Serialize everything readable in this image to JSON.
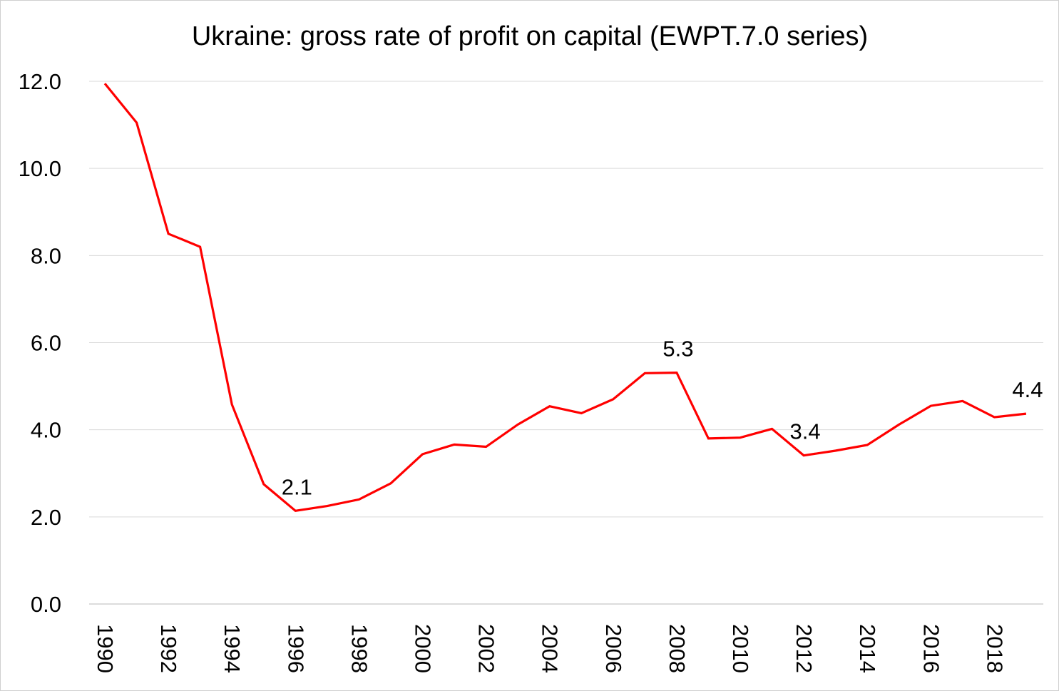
{
  "chart_data": {
    "type": "line",
    "title": "Ukraine: gross rate of profit on capital  (EWPT.7.0 series)",
    "xlabel": "",
    "ylabel": "",
    "ylim": [
      0,
      12
    ],
    "yticks": [
      "0.0",
      "2.0",
      "4.0",
      "6.0",
      "8.0",
      "10.0",
      "12.0"
    ],
    "x": [
      1990,
      1991,
      1992,
      1993,
      1994,
      1995,
      1996,
      1997,
      1998,
      1999,
      2000,
      2001,
      2002,
      2003,
      2004,
      2005,
      2006,
      2007,
      2008,
      2009,
      2010,
      2011,
      2012,
      2013,
      2014,
      2015,
      2016,
      2017,
      2018,
      2019
    ],
    "xticks": [
      "1990",
      "1992",
      "1994",
      "1996",
      "1998",
      "2000",
      "2002",
      "2004",
      "2006",
      "2008",
      "2010",
      "2012",
      "2014",
      "2016",
      "2018"
    ],
    "grid": true,
    "legend": "none",
    "series": [
      {
        "color": "#ff0000",
        "values": [
          11.95,
          11.05,
          8.5,
          8.2,
          4.58,
          2.75,
          2.14,
          2.25,
          2.4,
          2.77,
          3.44,
          3.66,
          3.61,
          4.12,
          4.54,
          4.38,
          4.7,
          5.3,
          5.31,
          3.8,
          3.82,
          4.02,
          3.41,
          3.52,
          3.65,
          4.12,
          4.55,
          4.66,
          4.29,
          4.37
        ]
      }
    ],
    "annotations": [
      {
        "x": 1996,
        "text": "2.1"
      },
      {
        "x": 2008,
        "text": "5.3"
      },
      {
        "x": 2012,
        "text": "3.4"
      },
      {
        "x": 2019,
        "text": "4.4"
      }
    ]
  }
}
